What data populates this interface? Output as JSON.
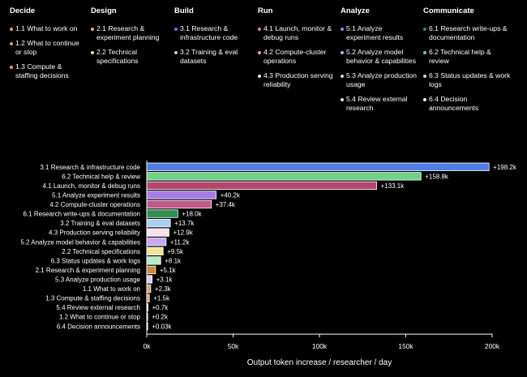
{
  "legend": {
    "groups": [
      {
        "title": "Decide",
        "items": [
          {
            "label": "1.1 What to work on",
            "color": "#d9a066"
          },
          {
            "label": "1.2 What to continue or stop",
            "color": "#d9a066"
          },
          {
            "label": "1.3 Compute & staffing decisions",
            "color": "#d9a066"
          }
        ]
      },
      {
        "title": "Design",
        "items": [
          {
            "label": "2.1 Research & experiment planning",
            "color": "#e0b75a"
          },
          {
            "label": "2.2 Technical specifications",
            "color": "#f2e39a"
          }
        ]
      },
      {
        "title": "Build",
        "items": [
          {
            "label": "3.1 Research & infrastructure code",
            "color": "#4f7fe6"
          },
          {
            "label": "3.2 Training & eval datasets",
            "color": "#a8d0f5"
          }
        ]
      },
      {
        "title": "Run",
        "items": [
          {
            "label": "4.1 Launch, monitor & debug runs",
            "color": "#e07a9a"
          },
          {
            "label": "4.2 Compute-cluster operations",
            "color": "#f0a0b8"
          },
          {
            "label": "4.3 Production serving reliability",
            "color": "#f7e2ec"
          }
        ]
      },
      {
        "title": "Analyze",
        "items": [
          {
            "label": "5.1 Analyze experiment results",
            "color": "#a77be8"
          },
          {
            "label": "5.2 Analyze model behavior & capabilities",
            "color": "#c9a8f2"
          },
          {
            "label": "5.3 Analyze production usage",
            "color": "#ddc8f7"
          },
          {
            "label": "5.4 Review external research",
            "color": "#f0e8fb"
          }
        ]
      },
      {
        "title": "Communicate",
        "items": [
          {
            "label": "6.1 Research write-ups & documentation",
            "color": "#2e8f4e"
          },
          {
            "label": "6.2 Technical help & review",
            "color": "#6fd08a"
          },
          {
            "label": "6.3 Status updates & work logs",
            "color": "#b2eec2"
          },
          {
            "label": "6.4 Decision announcements",
            "color": "#e6f8ea"
          }
        ]
      }
    ]
  },
  "chart_data": {
    "type": "bar",
    "orientation": "horizontal",
    "xlabel": "Output token increase / researcher / day",
    "xlim": [
      0,
      200000
    ],
    "xticks": [
      0,
      50000,
      100000,
      150000,
      200000
    ],
    "xtick_labels": [
      "0k",
      "50k",
      "100k",
      "150k",
      "200k"
    ],
    "categories": [
      "3.1 Research & infrastructure code",
      "6.2 Technical help & review",
      "4.1 Launch, monitor & debug runs",
      "5.1 Analyze experiment results",
      "4.2 Compute-cluster operations",
      "6.1 Research write-ups & documentation",
      "3.2 Training & eval datasets",
      "4.3 Production serving reliability",
      "5.2 Analyze model behavior & capabilities",
      "2.2 Technical specifications",
      "6.3 Status updates & work logs",
      "2.1 Research & experiment planning",
      "5.3 Analyze production usage",
      "1.1 What to work on",
      "1.3 Compute & staffing decisions",
      "5.4 Review external research",
      "1.2 What to continue or stop",
      "6.4 Decision announcements"
    ],
    "values": [
      198200,
      158800,
      133100,
      40200,
      37400,
      18000,
      13700,
      12900,
      11200,
      9500,
      8100,
      5100,
      3100,
      2300,
      1500,
      700,
      200,
      30
    ],
    "value_labels": [
      "+198.2k",
      "+158.8k",
      "+133.1k",
      "+40.2k",
      "+37.4k",
      "+18.0k",
      "+13.7k",
      "+12.9k",
      "+11.2k",
      "+9.5k",
      "+8.1k",
      "+5.1k",
      "+3.1k",
      "+2.3k",
      "+1.5k",
      "+0.7k",
      "+0.2k",
      "+0.03k"
    ],
    "colors": [
      "#4f7fe6",
      "#6fd08a",
      "#b5476e",
      "#a77be8",
      "#c0588a",
      "#2e8f4e",
      "#a8d0f5",
      "#f7e2ec",
      "#c9a8f2",
      "#f2e39a",
      "#b2eec2",
      "#c98a3a",
      "#ddc8f7",
      "#d9a066",
      "#d9a066",
      "#f0e8fb",
      "#d9a066",
      "#e6f8ea"
    ],
    "grid": false
  }
}
